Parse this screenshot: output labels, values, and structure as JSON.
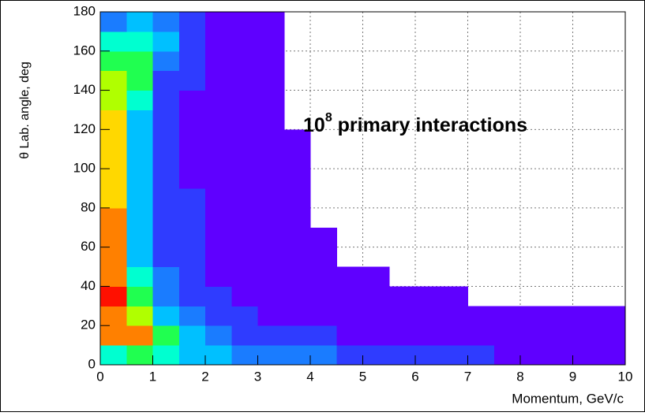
{
  "chart_data": {
    "type": "heatmap",
    "xlabel": "Momentum,  GeV/c",
    "ylabel": "θ Lab. angle, deg",
    "annotation": {
      "base": "10",
      "exponent": "8",
      "text": " primary interactions"
    },
    "xlim": [
      0,
      10
    ],
    "ylim": [
      0,
      180
    ],
    "xticks": [
      0,
      1,
      2,
      3,
      4,
      5,
      6,
      7,
      8,
      9,
      10
    ],
    "yticks": [
      0,
      20,
      40,
      60,
      80,
      100,
      120,
      140,
      160,
      180
    ],
    "grid": true,
    "zlim": [
      0,
      100
    ],
    "palette": [
      "#5f00ff",
      "#2f3cff",
      "#1a7cff",
      "#00c0ff",
      "#00ffd0",
      "#20ff50",
      "#b0ff00",
      "#ffd800",
      "#ff8000",
      "#ff1000"
    ],
    "xbins": [
      0,
      0.5,
      1,
      1.5,
      2,
      2.5,
      3,
      3.5,
      4,
      4.5,
      5,
      5.5,
      6,
      6.5,
      7,
      7.5,
      8,
      8.5,
      9,
      9.5,
      10
    ],
    "ybins": [
      0,
      10,
      20,
      30,
      40,
      50,
      60,
      70,
      80,
      90,
      100,
      110,
      120,
      130,
      140,
      150,
      160,
      170,
      180
    ],
    "z": [
      [
        45,
        55,
        45,
        35,
        30,
        28,
        25,
        22,
        20,
        18,
        17,
        15,
        14,
        12,
        10,
        8,
        6,
        5,
        5,
        5
      ],
      [
        85,
        80,
        55,
        35,
        22,
        18,
        15,
        12,
        10,
        9,
        8,
        7,
        6,
        5,
        5,
        5,
        4,
        4,
        3,
        3
      ],
      [
        88,
        65,
        35,
        22,
        15,
        10,
        8,
        6,
        5,
        5,
        4,
        4,
        3,
        3,
        3,
        2,
        1,
        1,
        1,
        1
      ],
      [
        90,
        50,
        25,
        15,
        10,
        7,
        5,
        4,
        3,
        3,
        2,
        2,
        2,
        1,
        null,
        null,
        null,
        null,
        null,
        null
      ],
      [
        88,
        40,
        20,
        12,
        8,
        5,
        4,
        3,
        2,
        1,
        1,
        null,
        null,
        null,
        null,
        null,
        null,
        null,
        null,
        null
      ],
      [
        85,
        35,
        18,
        10,
        7,
        4,
        3,
        2,
        1,
        null,
        null,
        null,
        null,
        null,
        null,
        null,
        null,
        null,
        null,
        null
      ],
      [
        82,
        32,
        17,
        10,
        6,
        4,
        3,
        2,
        1,
        null,
        null,
        null,
        null,
        null,
        null,
        null,
        null,
        null,
        null,
        null
      ],
      [
        80,
        30,
        16,
        10,
        6,
        4,
        3,
        1,
        null,
        null,
        null,
        null,
        null,
        null,
        null,
        null,
        null,
        null,
        null,
        null
      ],
      [
        78,
        30,
        16,
        10,
        6,
        4,
        3,
        1,
        null,
        null,
        null,
        null,
        null,
        null,
        null,
        null,
        null,
        null,
        null,
        null
      ],
      [
        78,
        30,
        15,
        9,
        5,
        3,
        2,
        1,
        null,
        null,
        null,
        null,
        null,
        null,
        null,
        null,
        null,
        null,
        null,
        null
      ],
      [
        78,
        32,
        15,
        9,
        5,
        3,
        2,
        1,
        null,
        null,
        null,
        null,
        null,
        null,
        null,
        null,
        null,
        null,
        null,
        null
      ],
      [
        75,
        35,
        15,
        9,
        5,
        3,
        2,
        1,
        null,
        null,
        null,
        null,
        null,
        null,
        null,
        null,
        null,
        null,
        null,
        null
      ],
      [
        72,
        38,
        15,
        9,
        5,
        3,
        2,
        null,
        null,
        null,
        null,
        null,
        null,
        null,
        null,
        null,
        null,
        null,
        null,
        null
      ],
      [
        65,
        45,
        15,
        9,
        5,
        3,
        2,
        null,
        null,
        null,
        null,
        null,
        null,
        null,
        null,
        null,
        null,
        null,
        null,
        null
      ],
      [
        60,
        50,
        18,
        10,
        5,
        3,
        2,
        null,
        null,
        null,
        null,
        null,
        null,
        null,
        null,
        null,
        null,
        null,
        null,
        null
      ],
      [
        55,
        55,
        22,
        10,
        5,
        3,
        2,
        null,
        null,
        null,
        null,
        null,
        null,
        null,
        null,
        null,
        null,
        null,
        null,
        null
      ],
      [
        40,
        45,
        30,
        15,
        6,
        3,
        2,
        null,
        null,
        null,
        null,
        null,
        null,
        null,
        null,
        null,
        null,
        null,
        null,
        null
      ],
      [
        20,
        30,
        25,
        15,
        6,
        3,
        2,
        null,
        null,
        null,
        null,
        null,
        null,
        null,
        null,
        null,
        null,
        null,
        null,
        null
      ]
    ]
  }
}
